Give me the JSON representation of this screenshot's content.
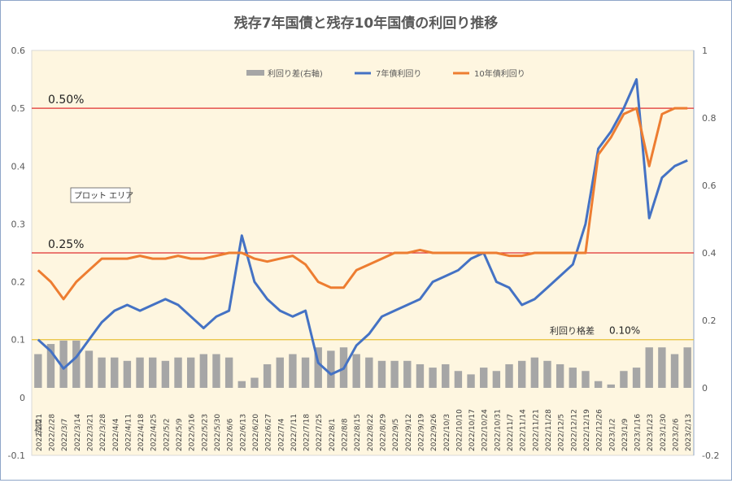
{
  "chart_data": {
    "type": "bar+line",
    "title": "残存7年国債と残存10年国債の利回り推移",
    "x_axis_title": "日付",
    "categories": [
      "2022/2/21",
      "2022/2/28",
      "2022/3/7",
      "2022/3/14",
      "2022/3/21",
      "2022/3/28",
      "2022/4/4",
      "2022/4/11",
      "2022/4/18",
      "2022/4/25",
      "2022/5/2",
      "2022/5/9",
      "2022/5/16",
      "2022/5/23",
      "2022/5/30",
      "2022/6/6",
      "2022/6/13",
      "2022/6/20",
      "2022/6/27",
      "2022/7/4",
      "2022/7/11",
      "2022/7/18",
      "2022/7/25",
      "2022/8/1",
      "2022/8/8",
      "2022/8/15",
      "2022/8/22",
      "2022/8/29",
      "2022/9/5",
      "2022/9/12",
      "2022/9/19",
      "2022/9/26",
      "2022/10/3",
      "2022/10/10",
      "2022/10/17",
      "2022/10/24",
      "2022/10/31",
      "2022/11/7",
      "2022/11/14",
      "2022/11/21",
      "2022/11/28",
      "2022/12/5",
      "2022/12/12",
      "2022/12/19",
      "2022/12/26",
      "2023/1/2",
      "2023/1/9",
      "2023/1/16",
      "2023/1/23",
      "2023/1/30",
      "2023/2/6",
      "2023/2/13"
    ],
    "y_left": {
      "min": -0.1,
      "max": 0.6,
      "ticks": [
        "0.6",
        "0.5",
        "0.4",
        "0.3",
        "0.2",
        "0.1",
        "0",
        "-0.1"
      ]
    },
    "y_right": {
      "min": -0.2,
      "max": 1.0,
      "ticks": [
        "1",
        "0.8",
        "0.6",
        "0.4",
        "0.2",
        "0",
        "-0.2"
      ]
    },
    "legend": {
      "position": "top-center",
      "items": [
        "利回り差(右軸)",
        "7年債利回り",
        "10年債利回り"
      ]
    },
    "plot_area_label": "プロット エリア",
    "reference_lines": [
      {
        "label": "0.50%",
        "value": 0.5,
        "color": "#e03030"
      },
      {
        "label": "0.25%",
        "value": 0.25,
        "color": "#e03030"
      },
      {
        "label": "利回り格差",
        "value_label": "0.10%",
        "value": 0.1,
        "color": "#e8c23a"
      }
    ],
    "series": [
      {
        "name": "利回り差(右軸)",
        "axis": "right",
        "color": "#a6a6a6",
        "kind": "bar",
        "values": [
          0.1,
          0.13,
          0.14,
          0.14,
          0.11,
          0.09,
          0.09,
          0.08,
          0.09,
          0.09,
          0.08,
          0.09,
          0.09,
          0.1,
          0.1,
          0.09,
          0.02,
          0.03,
          0.07,
          0.09,
          0.1,
          0.09,
          0.12,
          0.11,
          0.12,
          0.1,
          0.09,
          0.08,
          0.08,
          0.08,
          0.07,
          0.06,
          0.07,
          0.05,
          0.04,
          0.06,
          0.05,
          0.07,
          0.08,
          0.09,
          0.08,
          0.07,
          0.06,
          0.05,
          0.02,
          0.01,
          0.05,
          0.06,
          0.12,
          0.12,
          0.1,
          0.12
        ]
      },
      {
        "name": "7年債利回り",
        "axis": "left",
        "color": "#4472c4",
        "kind": "line",
        "values": [
          0.1,
          0.08,
          0.05,
          0.07,
          0.1,
          0.13,
          0.15,
          0.16,
          0.15,
          0.16,
          0.17,
          0.16,
          0.14,
          0.12,
          0.14,
          0.15,
          0.28,
          0.2,
          0.17,
          0.15,
          0.14,
          0.15,
          0.06,
          0.04,
          0.05,
          0.09,
          0.11,
          0.14,
          0.15,
          0.16,
          0.17,
          0.2,
          0.21,
          0.22,
          0.24,
          0.25,
          0.2,
          0.19,
          0.16,
          0.17,
          0.19,
          0.21,
          0.23,
          0.3,
          0.43,
          0.46,
          0.5,
          0.55,
          0.31,
          0.38,
          0.4,
          0.41
        ]
      },
      {
        "name": "10年債利回り",
        "axis": "left",
        "color": "#ed7d31",
        "kind": "line",
        "values": [
          0.22,
          0.2,
          0.17,
          0.2,
          0.22,
          0.24,
          0.24,
          0.24,
          0.245,
          0.24,
          0.24,
          0.245,
          0.24,
          0.24,
          0.245,
          0.25,
          0.25,
          0.24,
          0.235,
          0.24,
          0.245,
          0.23,
          0.2,
          0.19,
          0.19,
          0.22,
          0.23,
          0.24,
          0.25,
          0.25,
          0.255,
          0.25,
          0.25,
          0.25,
          0.25,
          0.25,
          0.25,
          0.245,
          0.245,
          0.25,
          0.25,
          0.25,
          0.25,
          0.25,
          0.42,
          0.45,
          0.49,
          0.5,
          0.4,
          0.49,
          0.5,
          0.5
        ]
      }
    ]
  }
}
